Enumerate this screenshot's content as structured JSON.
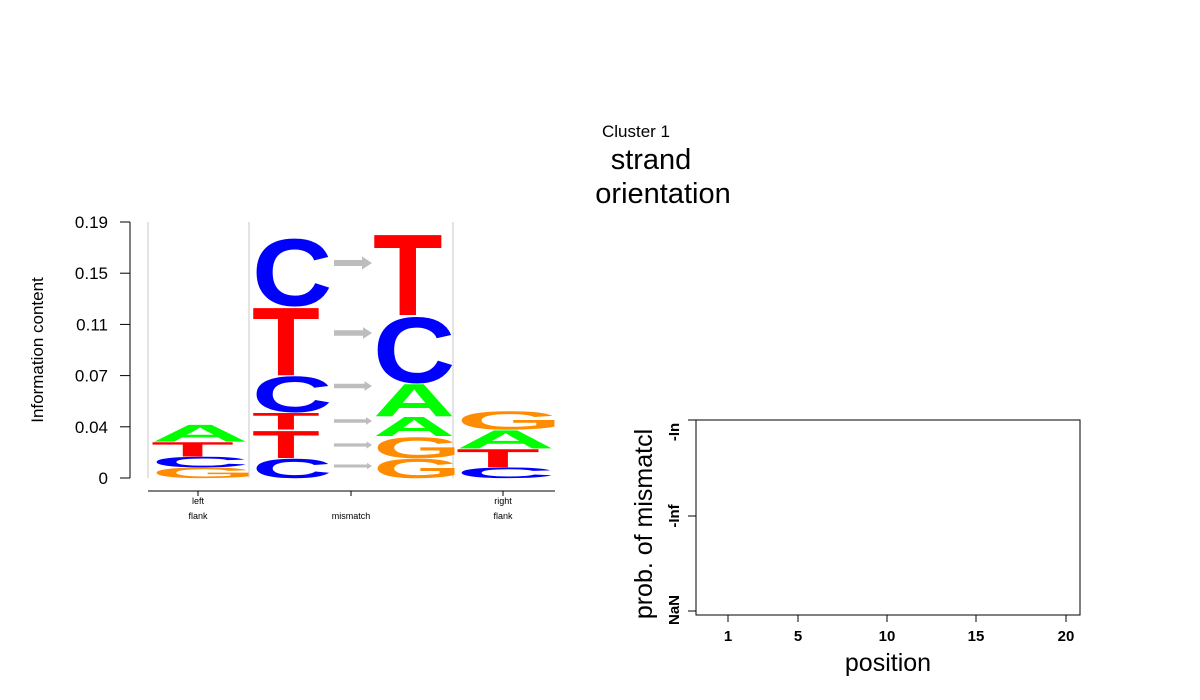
{
  "header": {
    "cluster_label": "Cluster 1",
    "title_line1": "strand",
    "title_line2": "orientation"
  },
  "colors": {
    "A": "#00ff00",
    "C": "#0000ff",
    "G": "#ff8c00",
    "T": "#ff0000",
    "arrow": "#bdbdbd",
    "grid": "#c8c8c8"
  },
  "chart_data": [
    {
      "type": "sequence-logo",
      "ylabel": "Information content",
      "yticks": [
        "0",
        "0.04",
        "0.07",
        "0.11",
        "0.15",
        "0.19"
      ],
      "ylim": [
        0,
        0.19
      ],
      "groups": [
        {
          "label_line1": "left",
          "label_line2": "flank"
        },
        {
          "label_line1": "",
          "label_line2": "mismatch"
        },
        {
          "label_line1": "right",
          "label_line2": "flank"
        }
      ],
      "columns": [
        {
          "stack": [
            {
              "letter": "G",
              "value": 0.008
            },
            {
              "letter": "C",
              "value": 0.008
            },
            {
              "letter": "T",
              "value": 0.011
            },
            {
              "letter": "A",
              "value": 0.013
            }
          ]
        },
        {
          "stack": [
            {
              "letter": "C",
              "value": 0.015
            },
            {
              "letter": "T",
              "value": 0.021
            },
            {
              "letter": "T",
              "value": 0.013
            },
            {
              "letter": "C",
              "value": 0.027
            },
            {
              "letter": "T",
              "value": 0.052
            },
            {
              "letter": "C",
              "value": 0.051
            }
          ]
        },
        {
          "stack": [
            {
              "letter": "G",
              "value": 0.015
            },
            {
              "letter": "G",
              "value": 0.016
            },
            {
              "letter": "A",
              "value": 0.015
            },
            {
              "letter": "A",
              "value": 0.025
            },
            {
              "letter": "C",
              "value": 0.05
            },
            {
              "letter": "T",
              "value": 0.062
            }
          ]
        },
        {
          "stack": [
            {
              "letter": "C",
              "value": 0.008
            },
            {
              "letter": "T",
              "value": 0.014
            },
            {
              "letter": "A",
              "value": 0.014
            },
            {
              "letter": "G",
              "value": 0.014
            }
          ]
        }
      ],
      "mismatch_arrows": 6
    },
    {
      "type": "line",
      "xlabel": "position",
      "ylabel": "prob. of mismatcl",
      "xticks": [
        "1",
        "5",
        "10",
        "15",
        "20"
      ],
      "xlim": [
        1,
        20
      ],
      "yticks": [
        "NaN",
        "-Inf",
        "-In"
      ],
      "series": []
    }
  ]
}
